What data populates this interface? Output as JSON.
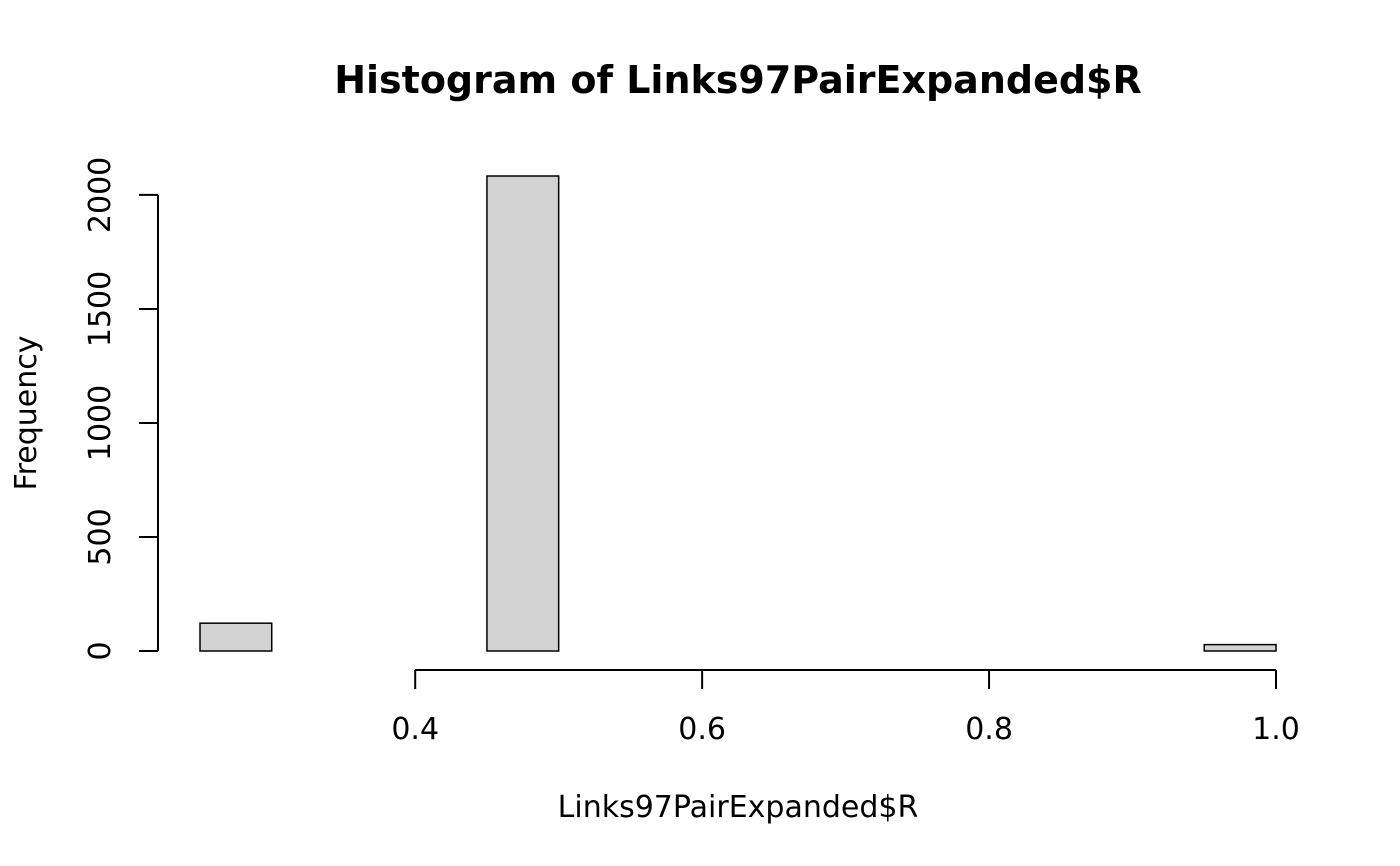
{
  "chart_data": {
    "type": "bar",
    "title": "Histogram of Links97PairExpanded$R",
    "xlabel": "Links97PairExpanded$R",
    "ylabel": "Frequency",
    "bin_width": 0.05,
    "bins": [
      {
        "start": 0.25,
        "end": 0.3,
        "count": 122
      },
      {
        "start": 0.3,
        "end": 0.35,
        "count": 0
      },
      {
        "start": 0.35,
        "end": 0.4,
        "count": 0
      },
      {
        "start": 0.4,
        "end": 0.45,
        "count": 0
      },
      {
        "start": 0.45,
        "end": 0.5,
        "count": 2083
      },
      {
        "start": 0.5,
        "end": 0.55,
        "count": 0
      },
      {
        "start": 0.55,
        "end": 0.6,
        "count": 0
      },
      {
        "start": 0.6,
        "end": 0.65,
        "count": 0
      },
      {
        "start": 0.65,
        "end": 0.7,
        "count": 0
      },
      {
        "start": 0.7,
        "end": 0.75,
        "count": 0
      },
      {
        "start": 0.75,
        "end": 0.8,
        "count": 0
      },
      {
        "start": 0.8,
        "end": 0.85,
        "count": 0
      },
      {
        "start": 0.85,
        "end": 0.9,
        "count": 0
      },
      {
        "start": 0.9,
        "end": 0.95,
        "count": 0
      },
      {
        "start": 0.95,
        "end": 1.0,
        "count": 28
      }
    ],
    "x_ticks": [
      "0.4",
      "0.6",
      "0.8",
      "1.0"
    ],
    "y_ticks": [
      "0",
      "500",
      "1000",
      "1500",
      "2000"
    ],
    "xlim": [
      0.25,
      1.0
    ],
    "ylim": [
      0,
      2083
    ],
    "bar_fill": "#d3d3d3",
    "bar_stroke": "#000000",
    "grid": false
  }
}
